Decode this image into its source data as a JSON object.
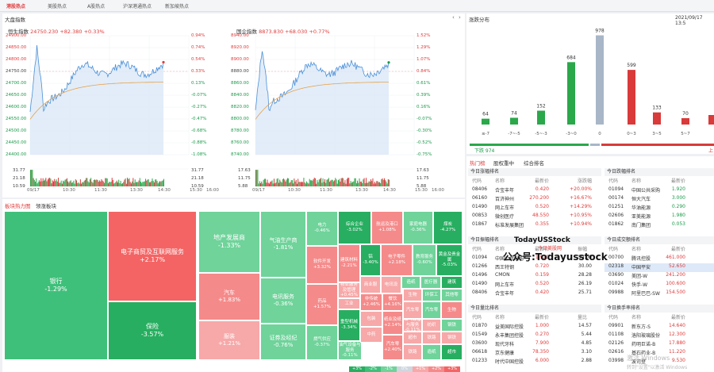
{
  "nav": {
    "tabs": [
      "港股热点",
      "美股热点",
      "A股热点",
      "沪深港通热点",
      "新加坡热点"
    ],
    "active": 0
  },
  "index_panel": {
    "title": "大盘指数"
  },
  "hsi": {
    "name": "恒生指数",
    "price": "24750.230",
    "change": "+82.380",
    "pct": "+0.33%",
    "yleft": [
      "24900.00",
      "24850.00",
      "24800.00",
      "24750.00",
      "24700.00",
      "24650.00",
      "24600.00",
      "24550.00",
      "24500.00",
      "24450.00",
      "24400.00"
    ],
    "yright": [
      "0.94%",
      "0.74%",
      "0.54%",
      "0.33%",
      "0.13%",
      "-0.07%",
      "-0.27%",
      "-0.47%",
      "-0.68%",
      "-0.88%",
      "-1.08%"
    ],
    "vol_left": [
      "31.77",
      "21.18",
      "10.59"
    ],
    "vol_right": [
      "31.77",
      "21.18",
      "10.59"
    ],
    "xlabels": [
      "09/17",
      "10:30",
      "11:30",
      "13:30",
      "14:30",
      "15:30",
      "16:00"
    ]
  },
  "hsce": {
    "name": "国企指数",
    "price": "8873.830",
    "change": "+68.030",
    "pct": "+0.77%",
    "yleft": [
      "8940.00",
      "8920.00",
      "8900.00",
      "8880.00",
      "8860.00",
      "8840.00",
      "8820.00",
      "8800.00",
      "8780.00",
      "8760.00",
      "8740.00"
    ],
    "yright": [
      "1.52%",
      "1.29%",
      "1.07%",
      "0.84%",
      "0.61%",
      "0.39%",
      "0.16%",
      "-0.07%",
      "-0.30%",
      "-0.52%",
      "-0.75%"
    ],
    "vol_left": [
      "17.63",
      "11.75",
      "5.88"
    ],
    "vol_right": [
      "17.63",
      "11.75",
      "5.88"
    ],
    "xlabels": [
      "09/17",
      "10:30",
      "11:30",
      "13:30",
      "14:30",
      "15:30",
      "16:00"
    ]
  },
  "dist": {
    "title": "涨跌分布",
    "datetime": "2021/09/17 13:5",
    "chart_data": {
      "type": "bar",
      "categories": [
        "≤-7",
        "-7~-5",
        "-5~-3",
        "-3~0",
        "0",
        "0~3",
        "3~5",
        "5~7",
        "≥7"
      ],
      "values": [
        64,
        74,
        152,
        684,
        978,
        599,
        133,
        70,
        null
      ],
      "colors": [
        "#2aa84a",
        "#2aa84a",
        "#2aa84a",
        "#2aa84a",
        "#a8b6c8",
        "#d93a3a",
        "#d93a3a",
        "#d93a3a",
        "#d93a3a"
      ]
    },
    "down_label": "下跌 974",
    "up_label": "上"
  },
  "heatmap": {
    "tabs": [
      "板块热力图",
      "领涨板块"
    ],
    "cells": [
      {
        "name": "银行",
        "pct": "-1.29%"
      },
      {
        "name": "电子商贸及互联网服务",
        "pct": "+2.17%"
      },
      {
        "name": "保险",
        "pct": "-3.57%"
      },
      {
        "name": "地产发展商",
        "pct": "-1.33%"
      },
      {
        "name": "汽车",
        "pct": "+1.83%"
      },
      {
        "name": "服装",
        "pct": "+1.21%"
      },
      {
        "name": "气油生产商",
        "pct": "-1.81%"
      },
      {
        "name": "软件开发",
        "pct": "+3.32%"
      },
      {
        "name": "电讯服务",
        "pct": "-0.36%"
      },
      {
        "name": "药品",
        "pct": "+1.57%"
      },
      {
        "name": "证券及经纪",
        "pct": "-0.76%"
      },
      {
        "name": "电力",
        "pct": "-0.46%"
      },
      {
        "name": "物业服务及管理",
        "pct": "+0.45%"
      },
      {
        "name": "地产投资",
        "pct": "-1.20%"
      },
      {
        "name": "燃气供应",
        "pct": "-0.37%"
      },
      {
        "name": "综合企业",
        "pct": "-3.02%"
      },
      {
        "name": "航运及港口",
        "pct": "+1.08%"
      },
      {
        "name": "家庭电器",
        "pct": "-0.36%"
      },
      {
        "name": "煤炭",
        "pct": "-4.27%"
      },
      {
        "name": "建筑材料",
        "pct": "-2.21%"
      },
      {
        "name": "铝",
        "pct": "-3.40%"
      },
      {
        "name": "电子零件",
        "pct": "+2.18%"
      },
      {
        "name": "教育服务",
        "pct": "-0.60%"
      },
      {
        "name": "黄金及贵金属",
        "pct": "-5.03%"
      },
      {
        "name": "工业",
        "pct": ""
      },
      {
        "name": "商业服",
        "pct": ""
      },
      {
        "name": "电讯设",
        "pct": ""
      },
      {
        "name": "造纸",
        "pct": ""
      },
      {
        "name": "医疗器",
        "pct": ""
      },
      {
        "name": "建筑",
        "pct": ""
      },
      {
        "name": "非传统",
        "pct": "+2.46%"
      },
      {
        "name": "餐饮",
        "pct": "+4.16%"
      },
      {
        "name": "生物",
        "pct": ""
      },
      {
        "name": "环保工",
        "pct": ""
      },
      {
        "name": "其他零",
        "pct": ""
      },
      {
        "name": "汽车零",
        "pct": ""
      },
      {
        "name": "重型机械",
        "pct": "-3.34%"
      },
      {
        "name": "纸业及纸",
        "pct": "+2.14%"
      },
      {
        "name": "包装",
        "pct": ""
      },
      {
        "name": "油气设备与服务",
        "pct": "-0.11%"
      },
      {
        "name": "中药",
        "pct": ""
      },
      {
        "name": "汽车零",
        "pct": "+2.40%"
      },
      {
        "name": "超市",
        "pct": ""
      },
      {
        "name": "纺织",
        "pct": ""
      },
      {
        "name": "钢铁",
        "pct": ""
      },
      {
        "name": "铁路",
        "pct": ""
      }
    ],
    "footer": [
      "+3%",
      "-2%",
      "-1%",
      "0%",
      "+1%",
      "+2%",
      "+3%"
    ]
  },
  "stock_tabs": [
    "热门榜",
    "股权重中",
    "综合排名"
  ],
  "gainers": {
    "title": "今日涨幅排名",
    "cols": [
      "代码",
      "名称",
      "最新价",
      "涨跌幅"
    ],
    "rows": [
      [
        "08406",
        "合宝丰年",
        "0.420",
        "+20.00%"
      ],
      [
        "06160",
        "百济神州",
        "270.200",
        "+16.67%"
      ],
      [
        "01490",
        "网上车市",
        "0.520",
        "+14.29%"
      ],
      [
        "00853",
        "微创医疗",
        "48.550",
        "+10.95%"
      ],
      [
        "01867",
        "标准发展集团",
        "0.355",
        "+10.94%"
      ]
    ]
  },
  "losers": {
    "title": "今日跌幅排名",
    "cols": [
      "代码",
      "名称",
      "最新价",
      "涨跌幅"
    ],
    "rows": [
      [
        "01094",
        "中国公共采购",
        "1.920",
        ""
      ],
      [
        "00174",
        "恒大汽车",
        "3.000",
        ""
      ],
      [
        "01251",
        "华油能源",
        "0.290",
        ""
      ],
      [
        "02606",
        "亚美能源",
        "1.980",
        ""
      ],
      [
        "01862",
        "南门集团",
        "0.053",
        ""
      ]
    ]
  },
  "amplitude": {
    "title": "今日振幅排名",
    "cols": [
      "代码",
      "名称",
      "最新价",
      "振幅"
    ],
    "rows": [
      [
        "01094",
        "中国公共采购",
        "1.920",
        "50.00"
      ],
      [
        "01266",
        "西王特钢",
        "0.720",
        "30.00"
      ],
      [
        "01496",
        "CMON",
        "0.159",
        "28.28"
      ],
      [
        "01490",
        "网上车市",
        "0.520",
        "26.19"
      ],
      [
        "08406",
        "合宝丰年",
        "0.420",
        "25.71"
      ]
    ]
  },
  "turnover": {
    "title": "今日成交额排名",
    "cols": [
      "代码",
      "名称",
      "最新价",
      "成"
    ],
    "rows": [
      [
        "00700",
        "腾讯控股",
        "461.000",
        ""
      ],
      [
        "02318",
        "中国平安",
        "52.650",
        ""
      ],
      [
        "03690",
        "美团-W",
        "241.200",
        ""
      ],
      [
        "01024",
        "快手-W",
        "100.600",
        ""
      ],
      [
        "09988",
        "阿里巴巴-SW",
        "154.500",
        ""
      ]
    ]
  },
  "volratio": {
    "title": "今日量比排名",
    "cols": [
      "代码",
      "名称",
      "最新价",
      "量比"
    ],
    "rows": [
      [
        "01870",
        "益美国际控股",
        "1.000",
        "14.57"
      ],
      [
        "01549",
        "永丰集团控股",
        "0.270",
        "5.44"
      ],
      [
        "03600",
        "现代牙科",
        "7.900",
        "4.85"
      ],
      [
        "06618",
        "京东健康",
        "78.350",
        "3.10"
      ],
      [
        "01233",
        "时代中国控股",
        "6.000",
        "2.88"
      ]
    ]
  },
  "turnover_rate": {
    "title": "今日换手率排名",
    "cols": [
      "代码",
      "名称",
      "最新价",
      "换"
    ],
    "rows": [
      [
        "09901",
        "新东方-S",
        "14.640",
        ""
      ],
      [
        "01108",
        "洛阳玻璃股份",
        "12.300",
        ""
      ],
      [
        "02126",
        "药明巨诺-B",
        "17.880",
        ""
      ],
      [
        "02616",
        "基石药业-B",
        "11.220",
        ""
      ],
      [
        "03998",
        "波司登",
        "9.530",
        ""
      ]
    ]
  },
  "watermark": {
    "line1": "TodayUSStock",
    "line2": "今日美股网",
    "line3": "公众号:Todayusstock",
    "os": "激活 Windows",
    "os2": "转到\"设置\"以激活 Windows"
  }
}
